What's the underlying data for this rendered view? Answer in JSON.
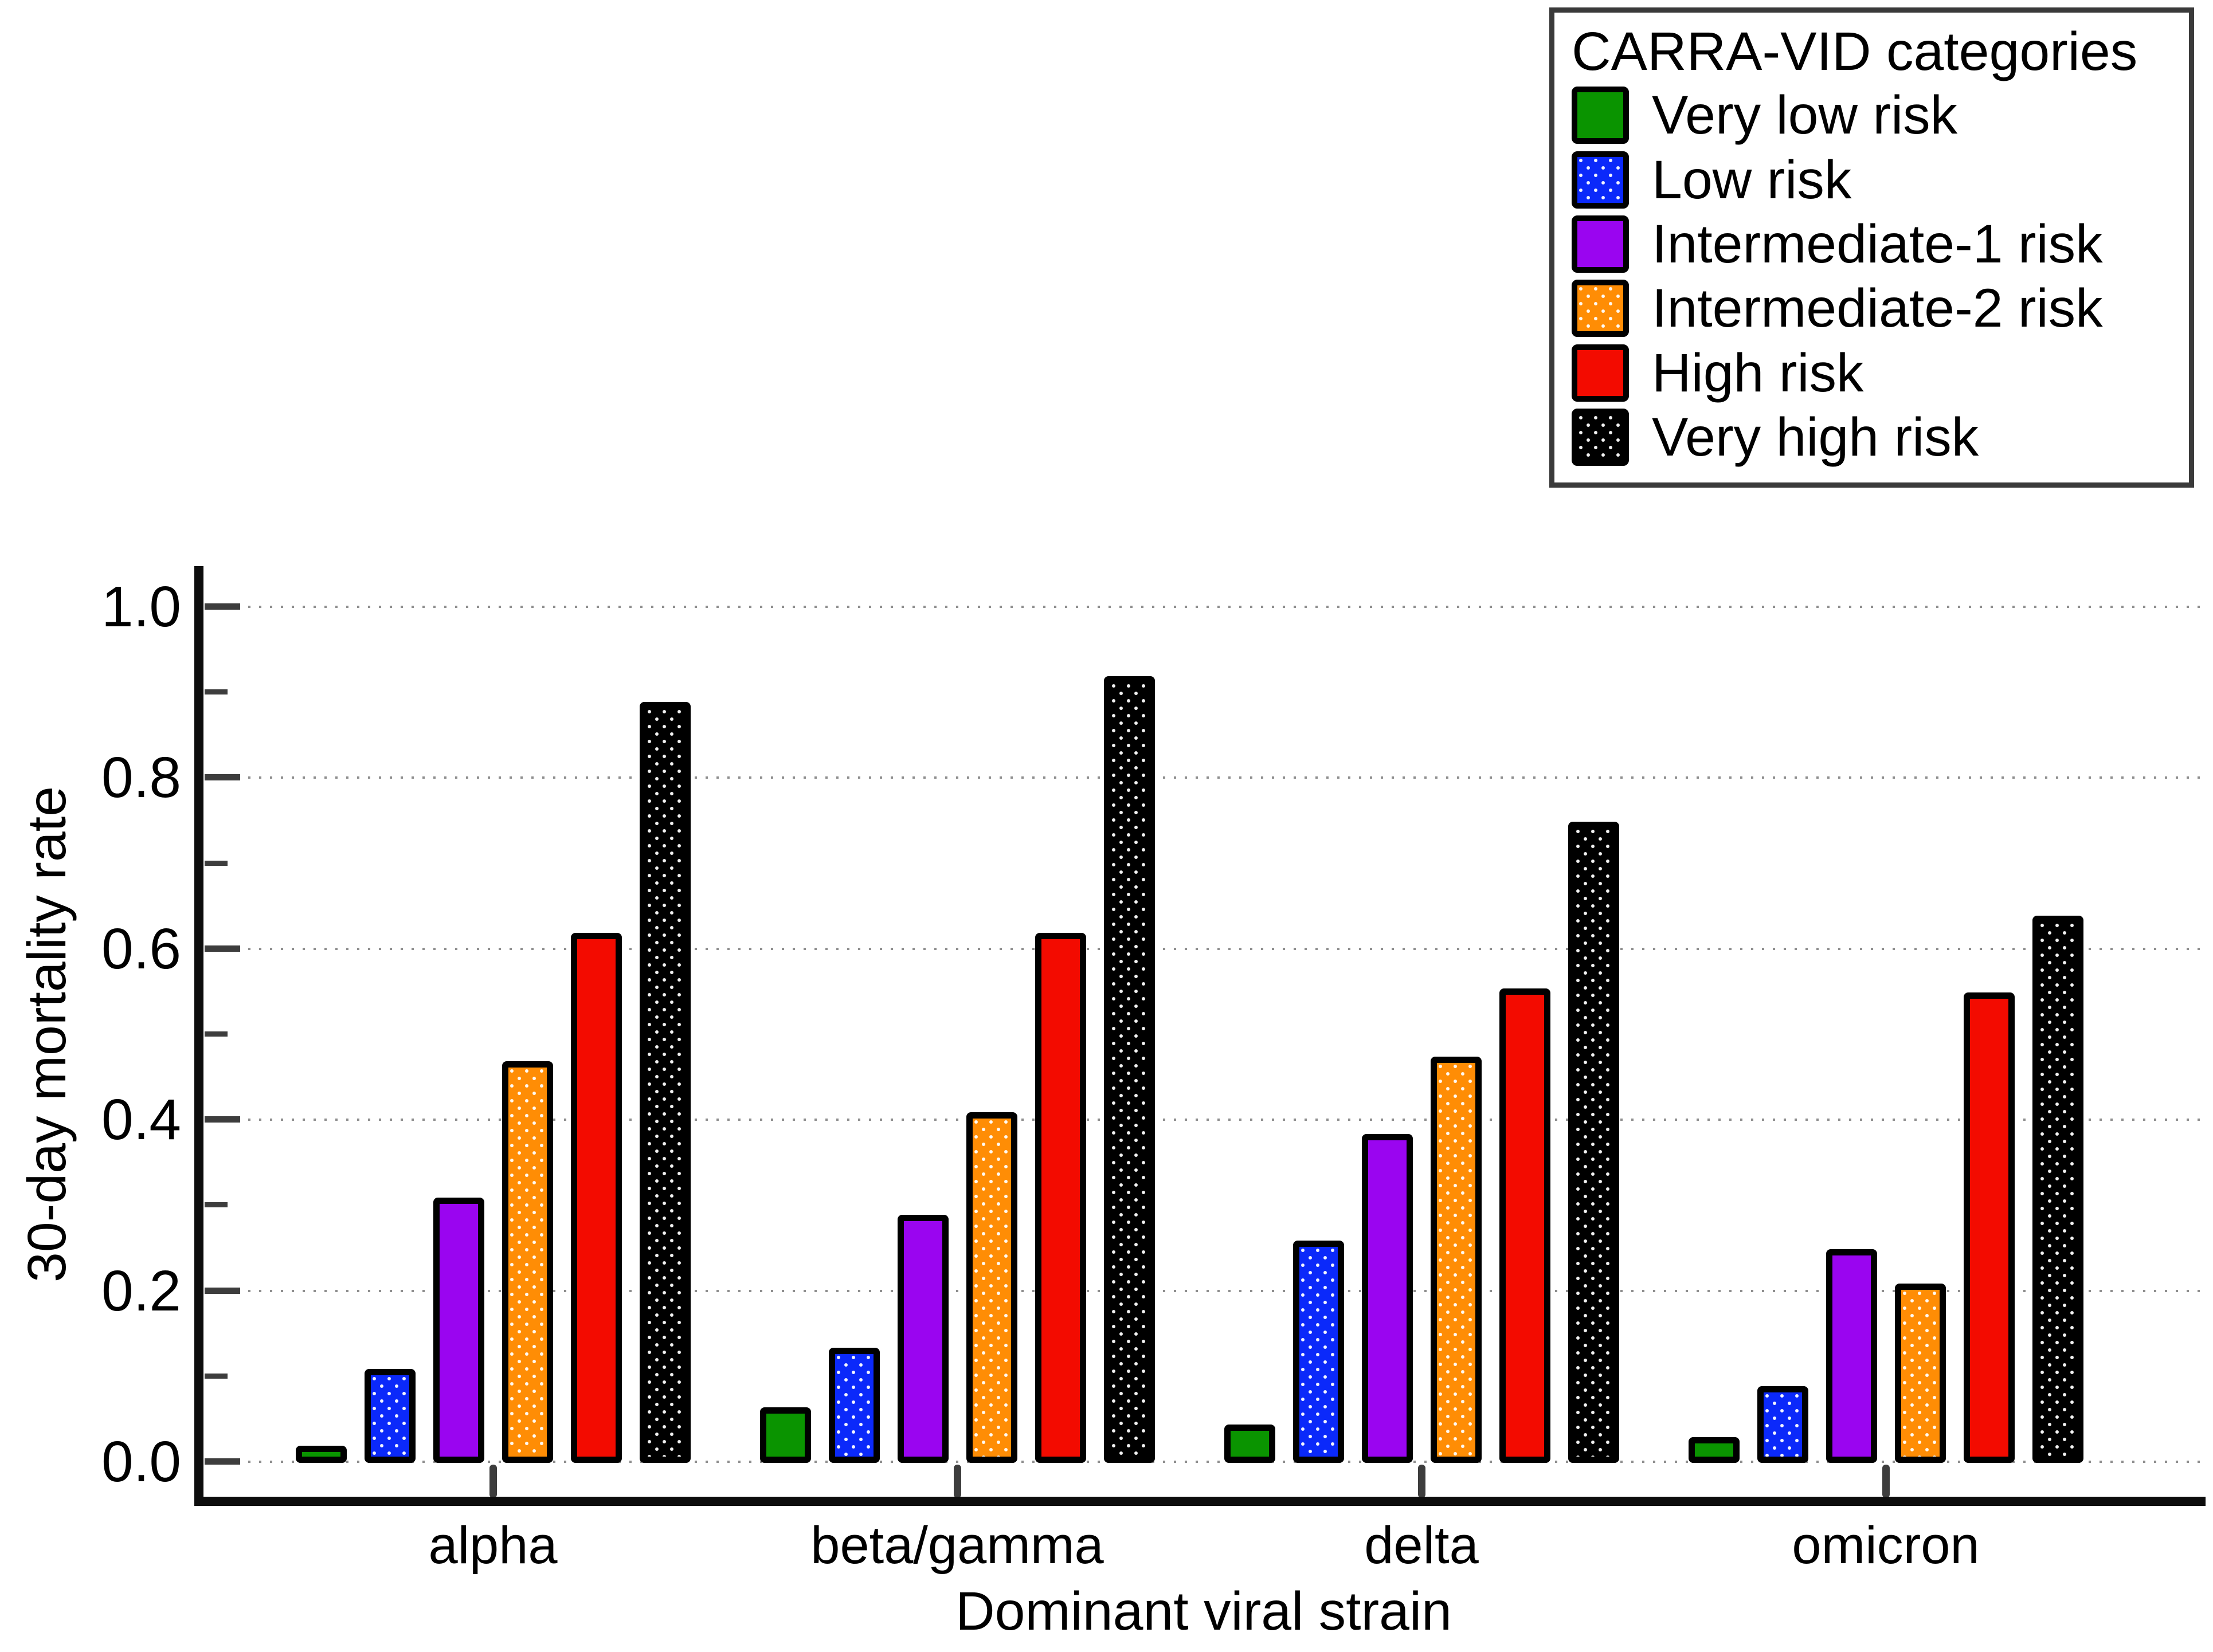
{
  "page": {
    "background": "#ffffff"
  },
  "legend": {
    "title": "CARRA-VID categories"
  },
  "axes": {
    "x_title": "Dominant viral strain",
    "y_title": "30-day mortality rate"
  },
  "colors": {
    "very_low": "#0a9400",
    "low": "#0b29fa",
    "intermediate1": "#9a05f0",
    "intermediate2": "#ff8d05",
    "high": "#f30b00",
    "very_high": "#000000",
    "gridline": "#8f8f8f",
    "spine": "#0d0d0d",
    "tick": "#3d3d3d",
    "legend_border": "#3a3a3a"
  },
  "chart_data": {
    "type": "bar",
    "title": "",
    "xlabel": "Dominant viral strain",
    "ylabel": "30-day mortality rate",
    "categories": [
      "alpha",
      "beta/gamma",
      "delta",
      "omicron"
    ],
    "series": [
      {
        "name": "Very low risk",
        "color": "#0a9400",
        "dotted": false,
        "values": [
          0.02,
          0.065,
          0.045,
          0.03
        ]
      },
      {
        "name": "Low risk",
        "color": "#0b29fa",
        "dotted": true,
        "values": [
          0.11,
          0.135,
          0.26,
          0.09
        ]
      },
      {
        "name": "Intermediate-1 risk",
        "color": "#9a05f0",
        "dotted": false,
        "values": [
          0.31,
          0.29,
          0.385,
          0.25
        ]
      },
      {
        "name": "Intermediate-2 risk",
        "color": "#ff8d05",
        "dotted": true,
        "values": [
          0.47,
          0.41,
          0.475,
          0.21
        ]
      },
      {
        "name": "High risk",
        "color": "#f30b00",
        "dotted": false,
        "values": [
          0.62,
          0.62,
          0.555,
          0.55
        ]
      },
      {
        "name": "Very high risk",
        "color": "#000000",
        "dotted": true,
        "values": [
          0.89,
          0.92,
          0.75,
          0.64
        ]
      }
    ],
    "ylim": [
      0.0,
      1.0
    ],
    "yticks": [
      0.0,
      0.2,
      0.4,
      0.6,
      0.8,
      1.0
    ],
    "ytick_labels": [
      "0.0",
      "0.2",
      "0.4",
      "0.6",
      "0.8",
      "1.0"
    ],
    "minor_yticks": [
      0.1,
      0.3,
      0.5,
      0.7,
      0.9
    ],
    "grid": "horizontal dotted",
    "legend_position": "top-right"
  }
}
